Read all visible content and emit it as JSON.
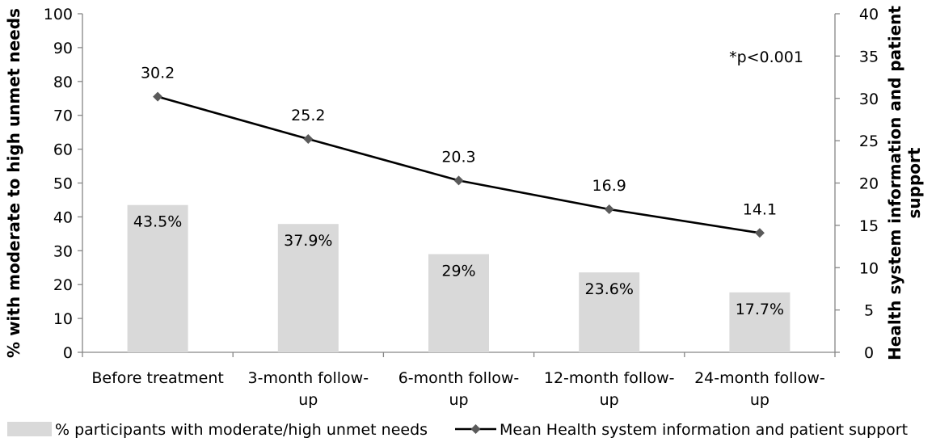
{
  "chart_data": {
    "type": "bar",
    "categories": [
      [
        "Before treatment"
      ],
      [
        "3-month follow-",
        "up"
      ],
      [
        "6-month follow-",
        "up"
      ],
      [
        "12-month follow-",
        "up"
      ],
      [
        "24-month follow-",
        "up"
      ]
    ],
    "series": [
      {
        "name": "% participants with moderate/high unmet needs",
        "type": "bar",
        "axis": "left",
        "values": [
          43.5,
          37.9,
          29,
          23.6,
          17.7
        ],
        "labels": [
          "43.5%",
          "37.9%",
          "29%",
          "23.6%",
          "17.7%"
        ],
        "color": "#d9d9d9"
      },
      {
        "name": "Mean Health system information and patient support",
        "type": "line",
        "axis": "right",
        "values": [
          30.2,
          25.2,
          20.3,
          16.9,
          14.1
        ],
        "labels": [
          "30.2",
          "25.2",
          "20.3",
          "16.9",
          "14.1"
        ],
        "color": "#000000",
        "marker_color": "#5a5a5a",
        "marker": "diamond"
      }
    ],
    "ylabel": "% with moderate to high unmet needs",
    "y2label": "Health system information and patient support",
    "ylim": [
      0,
      100
    ],
    "y2lim": [
      0,
      40
    ],
    "yticks": [
      0,
      10,
      20,
      30,
      40,
      50,
      60,
      70,
      80,
      90,
      100
    ],
    "y2ticks": [
      0,
      5,
      10,
      15,
      20,
      25,
      30,
      35,
      40
    ],
    "annotation": "*p<0.001",
    "grid": false,
    "legend_position": "bottom"
  }
}
